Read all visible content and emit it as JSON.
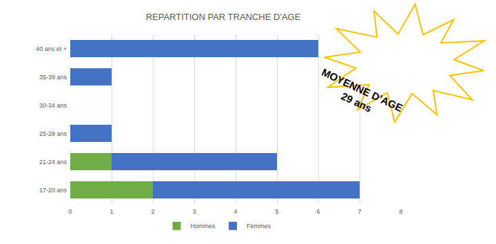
{
  "chart_data": {
    "type": "bar",
    "title": "REPARTITION PAR TRANCHE D'AGE",
    "orientation": "horizontal",
    "stacked": true,
    "categories": [
      "17-20 ans",
      "21-24 ans",
      "25-29 ans",
      "30-34 ans",
      "35-39 ans",
      "40 ans et +"
    ],
    "series": [
      {
        "name": "Hommes",
        "color": "#70ad47",
        "values": [
          2,
          1,
          0,
          0,
          0,
          0
        ]
      },
      {
        "name": "Femmes",
        "color": "#4472c4",
        "values": [
          5,
          4,
          1,
          0,
          1,
          6
        ]
      }
    ],
    "xlim": [
      0,
      8
    ],
    "xticks": [
      0,
      1,
      2,
      3,
      4,
      5,
      6,
      7,
      8
    ],
    "grid": true,
    "legend": "bottom",
    "annotation": [
      "MOYENNE D’AGE",
      "29 ans"
    ]
  }
}
